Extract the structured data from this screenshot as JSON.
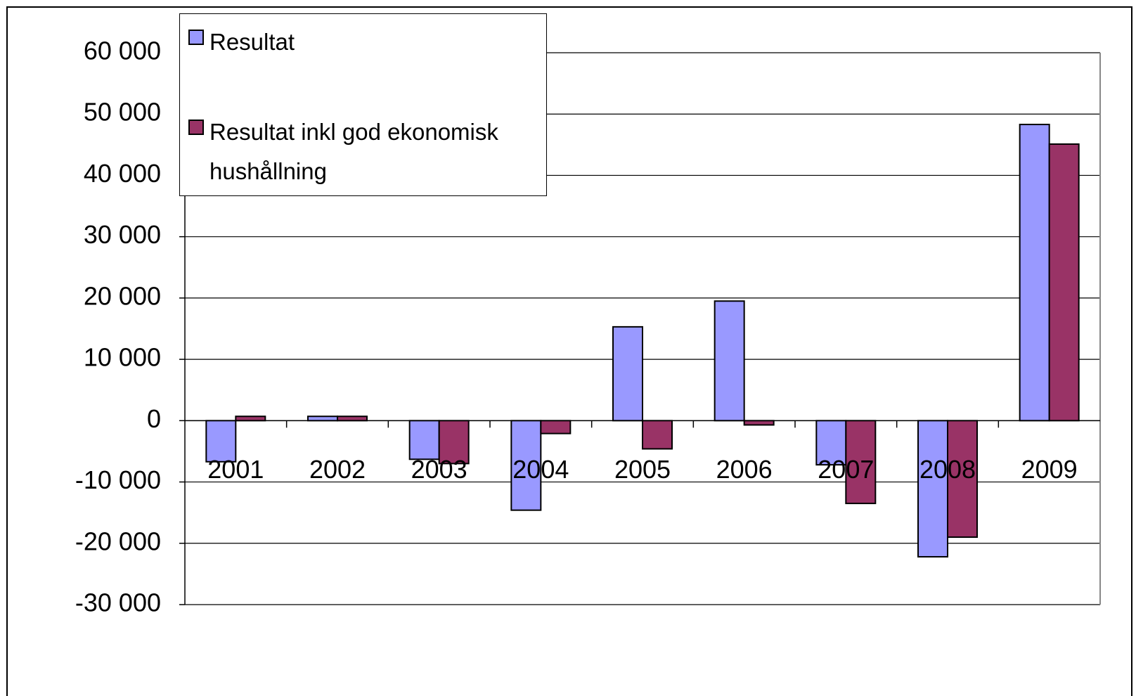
{
  "chart_data": {
    "type": "bar",
    "categories": [
      "2001",
      "2002",
      "2003",
      "2004",
      "2005",
      "2006",
      "2007",
      "2008",
      "2009"
    ],
    "series": [
      {
        "name": "Resultat",
        "color": "#9999ff",
        "values": [
          -6700,
          700,
          -6300,
          -14600,
          15300,
          19500,
          -7200,
          -22200,
          48300
        ]
      },
      {
        "name": "Resultat inkl god ekonomisk hushållning",
        "color": "#993366",
        "values": [
          700,
          700,
          -7000,
          -2100,
          -4600,
          -700,
          -13500,
          -19000,
          45100
        ]
      }
    ],
    "ylim": [
      -30000,
      60000
    ],
    "yticks": [
      {
        "value": -30000,
        "label": "-30 000"
      },
      {
        "value": -20000,
        "label": "-20 000"
      },
      {
        "value": -10000,
        "label": "-10 000"
      },
      0,
      {
        "value": 10000,
        "label": "10 000"
      },
      {
        "value": 20000,
        "label": "20 000"
      },
      {
        "value": 30000,
        "label": "30 000"
      },
      {
        "value": 40000,
        "label": "40 000"
      },
      {
        "value": 50000,
        "label": "50 000"
      },
      {
        "value": 60000,
        "label": "60 000"
      }
    ],
    "grid": true,
    "legend": "upper left"
  }
}
